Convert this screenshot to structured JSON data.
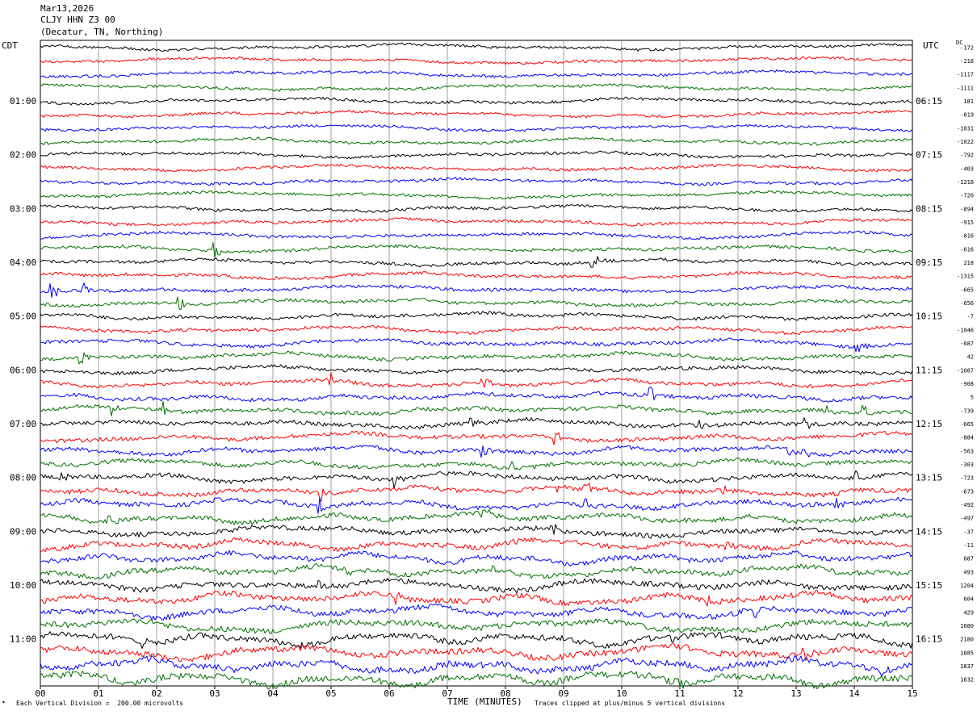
{
  "header": {
    "date": "Mar13,2026",
    "station": "CLJY HHN Z3 00",
    "location": "(Decatur, TN, Northing)"
  },
  "labels": {
    "left_tz": "CDT",
    "right_tz": "UTC",
    "dc": "DC",
    "x_title": "TIME (MINUTES)",
    "scale_note": "Each Vertical Division =  200.00 microvolts",
    "clip_note": "Traces clipped at plus/minus 5 vertical divisions"
  },
  "chart_data": {
    "type": "line",
    "title": "",
    "xlabel": "TIME (MINUTES)",
    "x_ticks": [
      "00",
      "01",
      "02",
      "03",
      "04",
      "05",
      "06",
      "07",
      "08",
      "09",
      "10",
      "11",
      "12",
      "13",
      "14",
      "15"
    ],
    "xlim": [
      0,
      15
    ],
    "grid": true,
    "trace_count": 48,
    "minutes_per_trace": 15,
    "trace_colors": [
      "#000000",
      "#ff0000",
      "#0000ff",
      "#007000"
    ],
    "left_time_labels": [
      {
        "trace": 4,
        "label": "01:00"
      },
      {
        "trace": 8,
        "label": "02:00"
      },
      {
        "trace": 12,
        "label": "03:00"
      },
      {
        "trace": 16,
        "label": "04:00"
      },
      {
        "trace": 20,
        "label": "05:00"
      },
      {
        "trace": 24,
        "label": "06:00"
      },
      {
        "trace": 28,
        "label": "07:00"
      },
      {
        "trace": 32,
        "label": "08:00"
      },
      {
        "trace": 36,
        "label": "09:00"
      },
      {
        "trace": 40,
        "label": "10:00"
      },
      {
        "trace": 44,
        "label": "11:00"
      }
    ],
    "right_time_labels": [
      {
        "trace": 4,
        "label": "06:15"
      },
      {
        "trace": 8,
        "label": "07:15"
      },
      {
        "trace": 12,
        "label": "08:15"
      },
      {
        "trace": 16,
        "label": "09:15"
      },
      {
        "trace": 20,
        "label": "10:15"
      },
      {
        "trace": 24,
        "label": "11:15"
      },
      {
        "trace": 28,
        "label": "12:15"
      },
      {
        "trace": 32,
        "label": "13:15"
      },
      {
        "trace": 36,
        "label": "14:15"
      },
      {
        "trace": 40,
        "label": "15:15"
      },
      {
        "trace": 44,
        "label": "16:15"
      }
    ],
    "dc_offsets": [
      "-172",
      "-218",
      "-1117",
      "-1111",
      "181",
      "-819",
      "-1031",
      "-1022",
      "-792",
      "-403",
      "-1218",
      "-720",
      "-894",
      "-915",
      "-816",
      "-616",
      "218",
      "-1315",
      "-665",
      "-656",
      "-7",
      "-1046",
      "-687",
      "42",
      "-1087",
      "-908",
      "5",
      "-739",
      "-665",
      "-884",
      "-563",
      "-303",
      "-723",
      "-673",
      "-492",
      "-497",
      "-37",
      "-11",
      "687",
      "493",
      "1204",
      "604",
      "429",
      "1080",
      "2180",
      "1885",
      "1837",
      "1632"
    ],
    "events": [
      {
        "trace": 15,
        "minute": 3.0
      },
      {
        "trace": 16,
        "minute": 9.5
      },
      {
        "trace": 18,
        "minute": 0.2
      },
      {
        "trace": 18,
        "minute": 0.75
      },
      {
        "trace": 19,
        "minute": 2.4
      },
      {
        "trace": 22,
        "minute": 14.05
      },
      {
        "trace": 23,
        "minute": 0.7
      },
      {
        "trace": 25,
        "minute": 5.0
      },
      {
        "trace": 25,
        "minute": 7.6
      },
      {
        "trace": 26,
        "minute": 10.5
      },
      {
        "trace": 27,
        "minute": 1.25
      },
      {
        "trace": 27,
        "minute": 2.15
      },
      {
        "trace": 27,
        "minute": 13.45
      },
      {
        "trace": 27,
        "minute": 14.15
      },
      {
        "trace": 28,
        "minute": 7.4
      },
      {
        "trace": 28,
        "minute": 11.3
      },
      {
        "trace": 28,
        "minute": 13.15
      },
      {
        "trace": 29,
        "minute": 8.85
      },
      {
        "trace": 30,
        "minute": 7.6
      },
      {
        "trace": 30,
        "minute": 12.85
      },
      {
        "trace": 30,
        "minute": 13.15
      },
      {
        "trace": 31,
        "minute": 8.1
      },
      {
        "trace": 32,
        "minute": 0.3
      },
      {
        "trace": 32,
        "minute": 6.1
      },
      {
        "trace": 32,
        "minute": 14.0
      },
      {
        "trace": 33,
        "minute": 4.8
      },
      {
        "trace": 33,
        "minute": 8.9
      },
      {
        "trace": 33,
        "minute": 9.4
      },
      {
        "trace": 33,
        "minute": 11.75
      },
      {
        "trace": 33,
        "minute": 12.4
      },
      {
        "trace": 34,
        "minute": 4.8
      },
      {
        "trace": 34,
        "minute": 9.4
      },
      {
        "trace": 34,
        "minute": 13.7
      },
      {
        "trace": 35,
        "minute": 1.2
      },
      {
        "trace": 35,
        "minute": 7.6
      },
      {
        "trace": 36,
        "minute": 8.8
      },
      {
        "trace": 37,
        "minute": 8.15
      },
      {
        "trace": 37,
        "minute": 11.75
      },
      {
        "trace": 39,
        "minute": 5.3
      },
      {
        "trace": 39,
        "minute": 7.8
      },
      {
        "trace": 40,
        "minute": 4.8
      },
      {
        "trace": 41,
        "minute": 6.1
      },
      {
        "trace": 41,
        "minute": 11.5
      },
      {
        "trace": 42,
        "minute": 12.3
      },
      {
        "trace": 44,
        "minute": 1.75
      },
      {
        "trace": 44,
        "minute": 10.8
      },
      {
        "trace": 45,
        "minute": 13.15
      },
      {
        "trace": 46,
        "minute": 14.5
      },
      {
        "trace": 47,
        "minute": 10.95
      }
    ]
  }
}
